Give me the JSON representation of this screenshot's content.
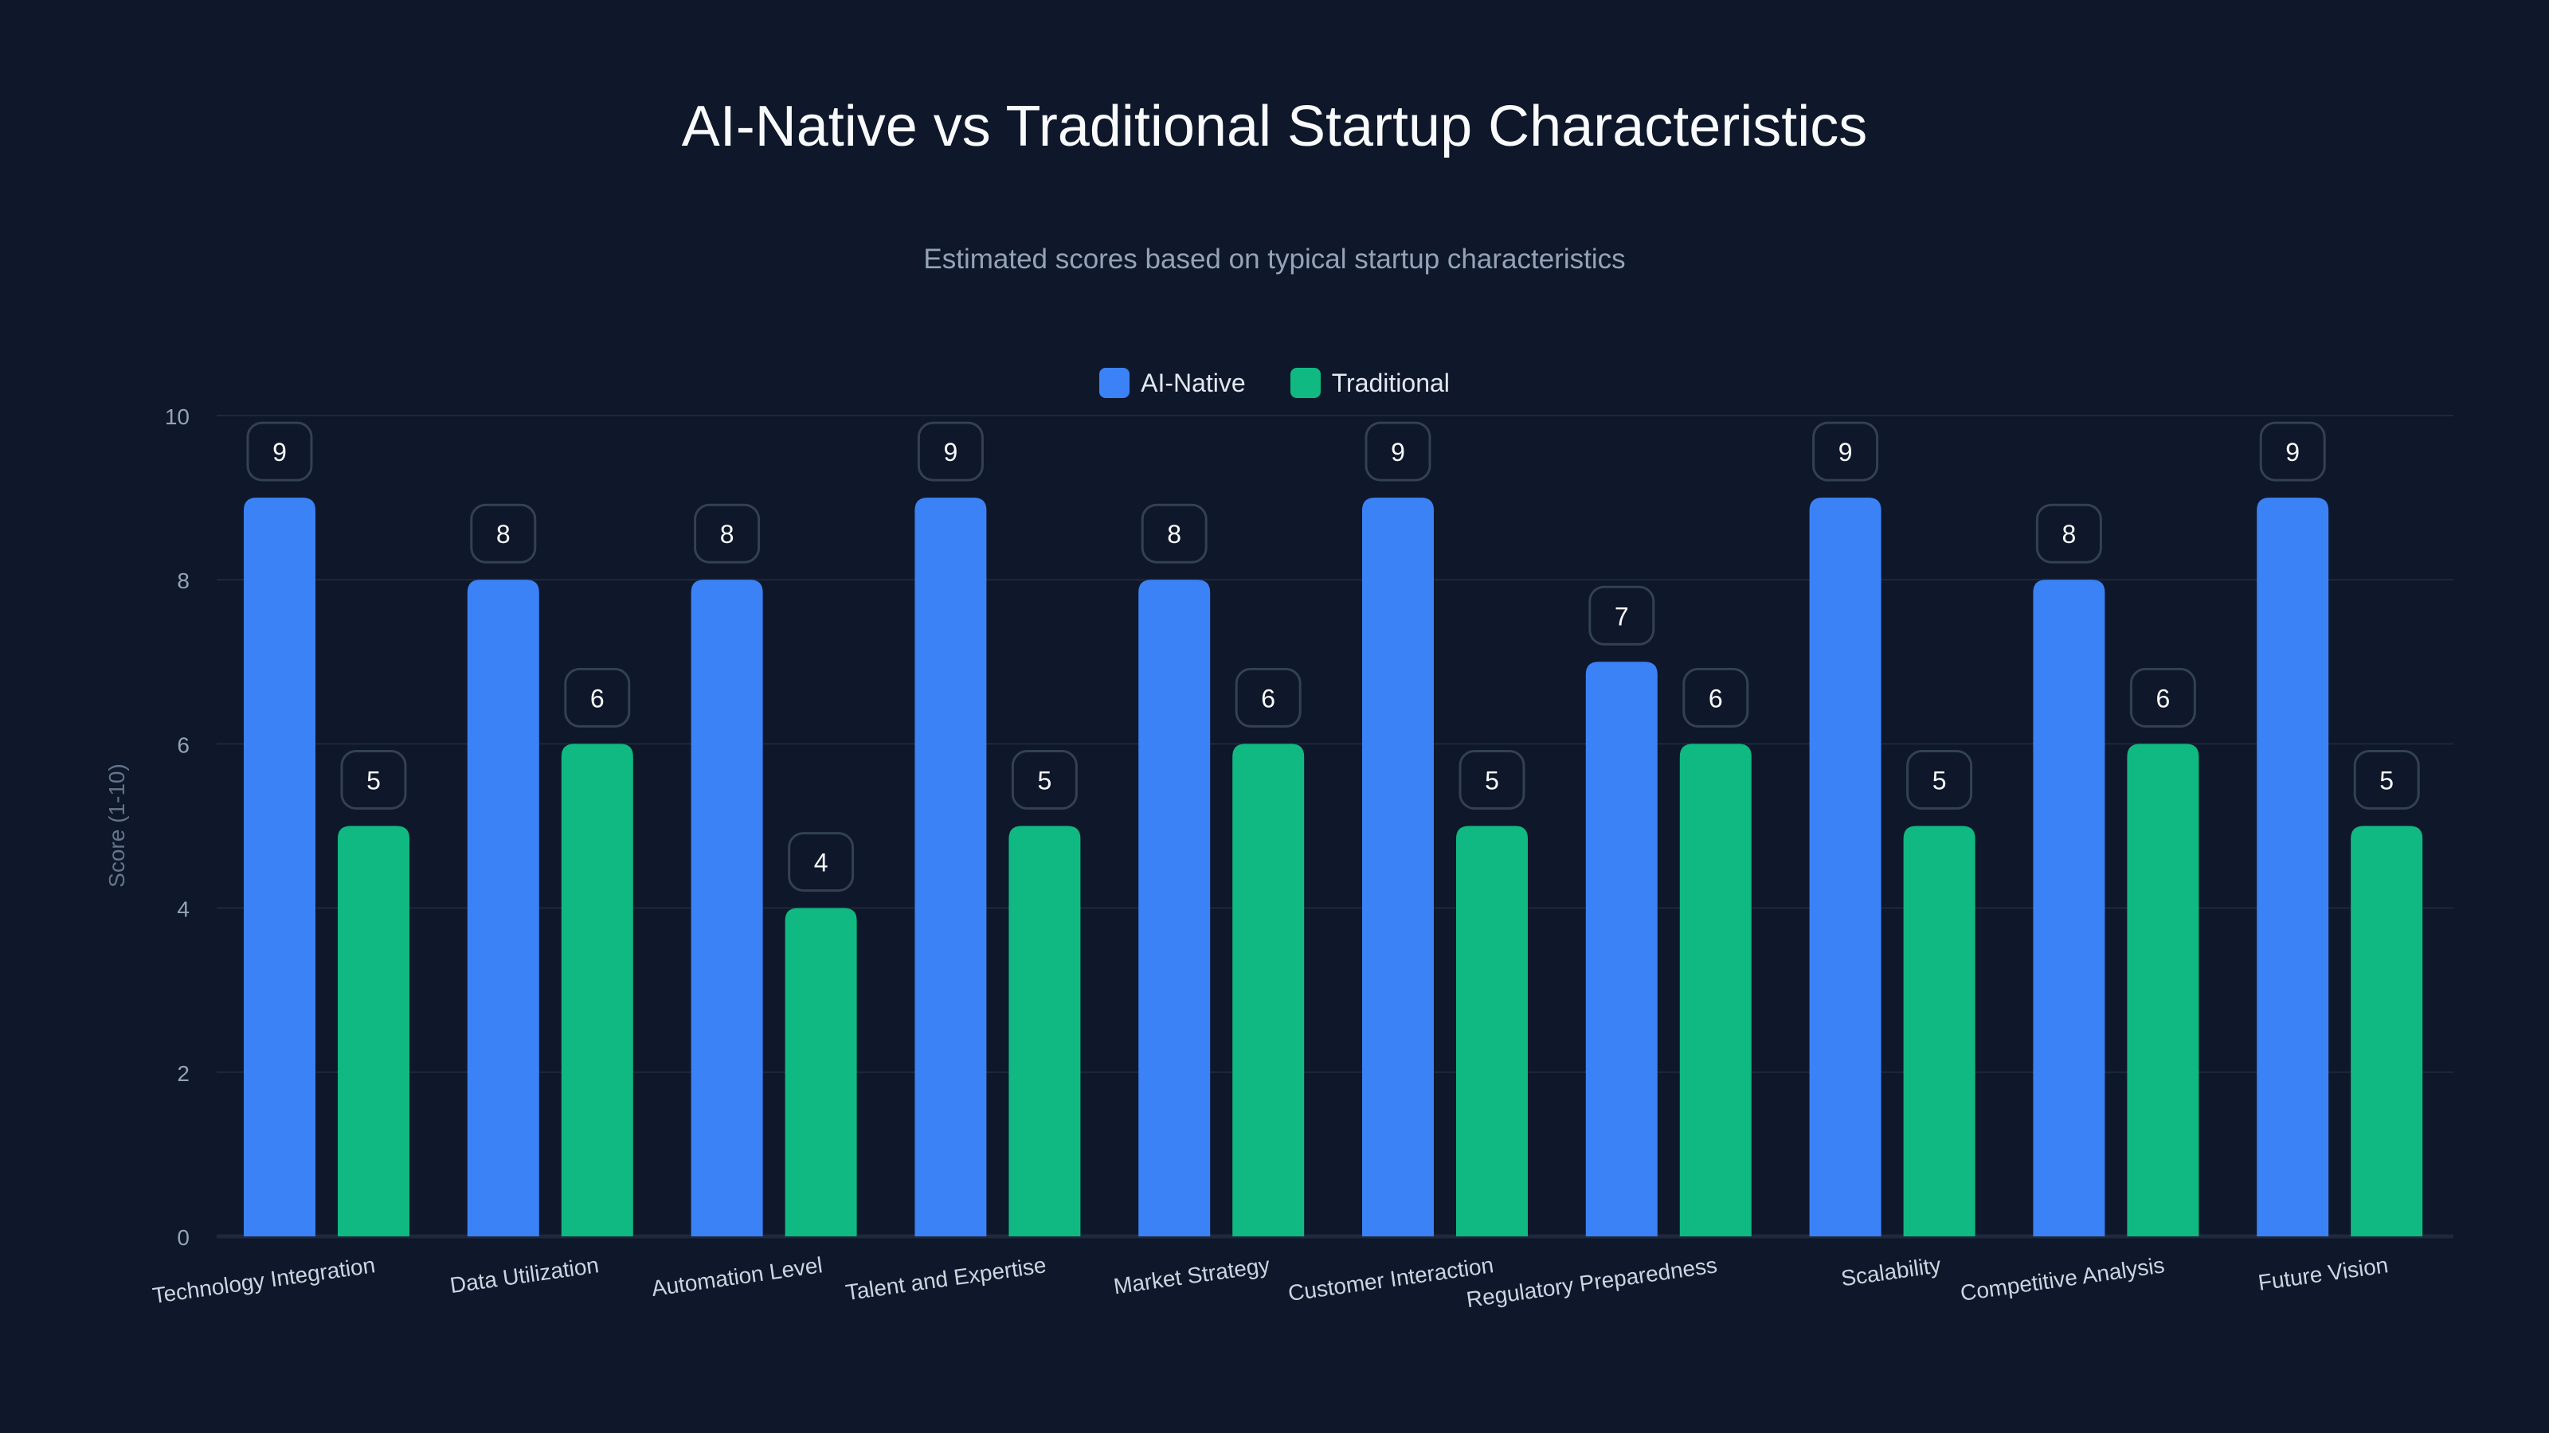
{
  "chart_data": {
    "type": "bar",
    "title": "AI-Native vs Traditional Startup Characteristics",
    "subtitle": "Estimated scores based on typical startup characteristics",
    "xlabel": "",
    "ylabel": "Score (1-10)",
    "ylim": [
      0,
      10
    ],
    "yticks": [
      0,
      2,
      4,
      6,
      8,
      10
    ],
    "grid": true,
    "legend_placement": "top-center",
    "categories": [
      "Technology Integration",
      "Data Utilization",
      "Automation Level",
      "Talent and Expertise",
      "Market Strategy",
      "Customer Interaction",
      "Regulatory Preparedness",
      "Scalability",
      "Competitive Analysis",
      "Future Vision"
    ],
    "series": [
      {
        "name": "AI-Native",
        "color": "#3b82f6",
        "values": [
          9,
          8,
          8,
          9,
          8,
          9,
          7,
          9,
          8,
          9
        ]
      },
      {
        "name": "Traditional",
        "color": "#10b981",
        "values": [
          5,
          6,
          4,
          5,
          6,
          5,
          6,
          5,
          6,
          5
        ]
      }
    ]
  },
  "colors": {
    "background": "#0f172a",
    "grid": "#1e293b",
    "axis_text": "#94a3b8",
    "label_border": "#334155"
  }
}
